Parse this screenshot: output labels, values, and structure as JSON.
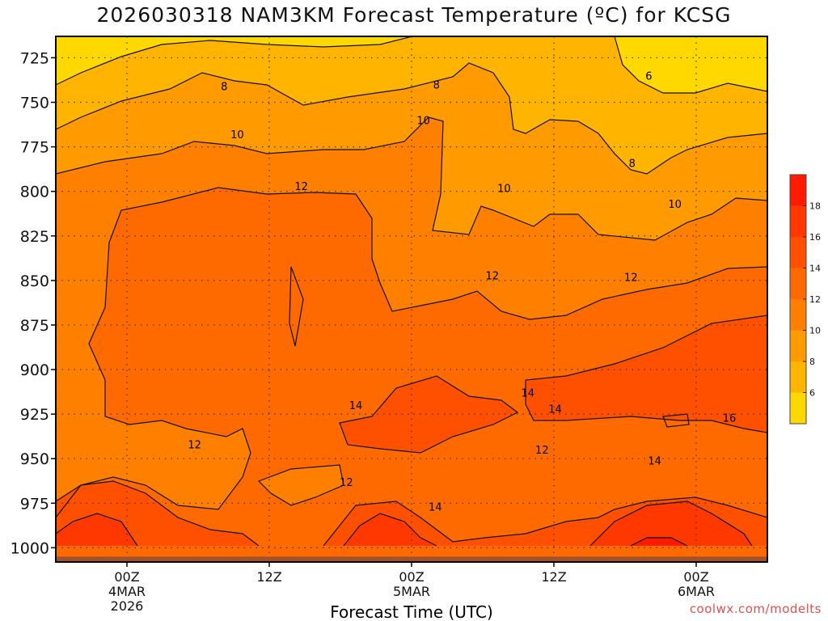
{
  "chart_data": {
    "type": "heatmap",
    "title": "2026030318 NAM3KM Forecast Temperature (ºC) for KCSG",
    "xlabel": "Forecast Time (UTC)",
    "ylabel": "",
    "x_ticks": [
      {
        "hour": 6,
        "lines": [
          "00Z",
          "4MAR",
          "2026"
        ]
      },
      {
        "hour": 18,
        "lines": [
          "12Z"
        ]
      },
      {
        "hour": 30,
        "lines": [
          "00Z",
          "5MAR"
        ]
      },
      {
        "hour": 42,
        "lines": [
          "12Z"
        ]
      },
      {
        "hour": 54,
        "lines": [
          "00Z",
          "6MAR"
        ]
      }
    ],
    "xlim": [
      0,
      60
    ],
    "y_ticks": [
      725,
      750,
      775,
      800,
      825,
      850,
      875,
      900,
      925,
      950,
      975,
      1000
    ],
    "ylim": [
      713,
      1008
    ],
    "surface_pressure": 1005,
    "colorbar": {
      "levels": [
        6,
        8,
        10,
        12,
        14,
        16,
        18
      ],
      "colors": [
        "#ffd800",
        "#ffb400",
        "#ff9a00",
        "#ff8000",
        "#ff6a00",
        "#ff5000",
        "#ff3800",
        "#ff1a00"
      ]
    },
    "contours": [
      {
        "label": "6",
        "x": 50.0,
        "y": 735
      },
      {
        "label": "8",
        "x": 14.2,
        "y": 741
      },
      {
        "label": "8",
        "x": 32.1,
        "y": 740
      },
      {
        "label": "8",
        "x": 48.6,
        "y": 784
      },
      {
        "label": "10",
        "x": 15.3,
        "y": 768
      },
      {
        "label": "10",
        "x": 31.0,
        "y": 760
      },
      {
        "label": "10",
        "x": 37.8,
        "y": 798
      },
      {
        "label": "10",
        "x": 52.2,
        "y": 807
      },
      {
        "label": "12",
        "x": 20.7,
        "y": 797
      },
      {
        "label": "12",
        "x": 36.8,
        "y": 847
      },
      {
        "label": "12",
        "x": 48.5,
        "y": 848
      },
      {
        "label": "12",
        "x": 11.7,
        "y": 942
      },
      {
        "label": "12",
        "x": 24.5,
        "y": 963
      },
      {
        "label": "12",
        "x": 41.0,
        "y": 945
      },
      {
        "label": "14",
        "x": 25.3,
        "y": 920
      },
      {
        "label": "14",
        "x": 39.8,
        "y": 913
      },
      {
        "label": "14",
        "x": 42.1,
        "y": 922
      },
      {
        "label": "14",
        "x": 50.5,
        "y": 951
      },
      {
        "label": "14",
        "x": 32.0,
        "y": 977
      },
      {
        "label": "16",
        "x": 56.8,
        "y": 927
      }
    ]
  },
  "credit": "coolwx.com/modelts"
}
